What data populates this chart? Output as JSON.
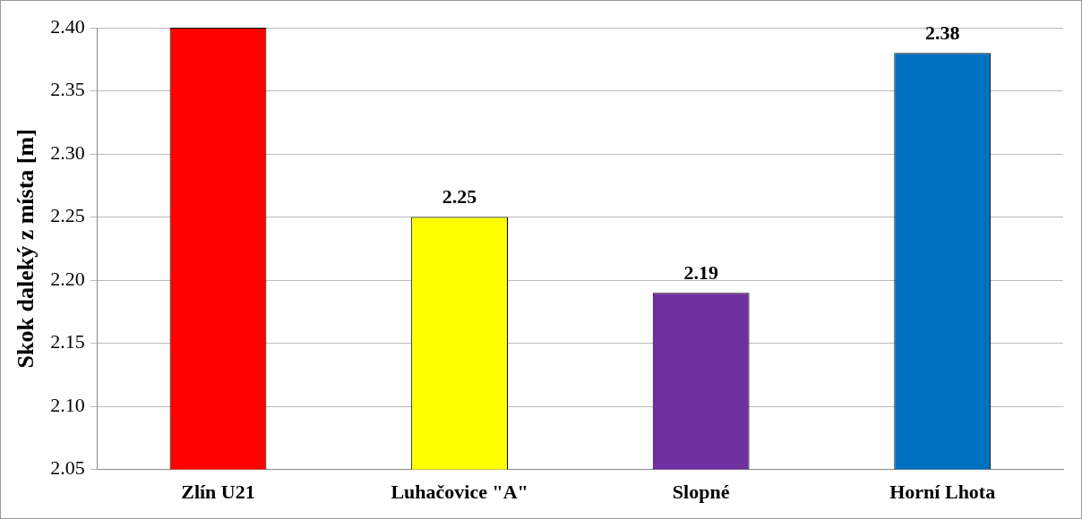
{
  "chart_data": {
    "type": "bar",
    "ylabel": "Skok daleký z místa [m]",
    "categories": [
      "Zlín U21",
      "Luhačovice \"A\"",
      "Slopné",
      "Horní Lhota"
    ],
    "values": [
      2.4,
      2.25,
      2.19,
      2.38
    ],
    "colors": [
      "#ff0000",
      "#ffff00",
      "#7030a0",
      "#0070c0"
    ],
    "value_labels": [
      null,
      "2.25",
      "2.19",
      "2.38"
    ],
    "ylim": [
      2.05,
      2.4
    ],
    "yticks": [
      {
        "value": 2.05,
        "label": "2.05"
      },
      {
        "value": 2.1,
        "label": "2.10"
      },
      {
        "value": 2.15,
        "label": "2.15"
      },
      {
        "value": 2.2,
        "label": "2.20"
      },
      {
        "value": 2.25,
        "label": "2.25"
      },
      {
        "value": 2.3,
        "label": "2.30"
      },
      {
        "value": 2.35,
        "label": "2.35"
      },
      {
        "value": 2.4,
        "label": "2.40"
      }
    ],
    "grid": "y",
    "legend": false
  }
}
